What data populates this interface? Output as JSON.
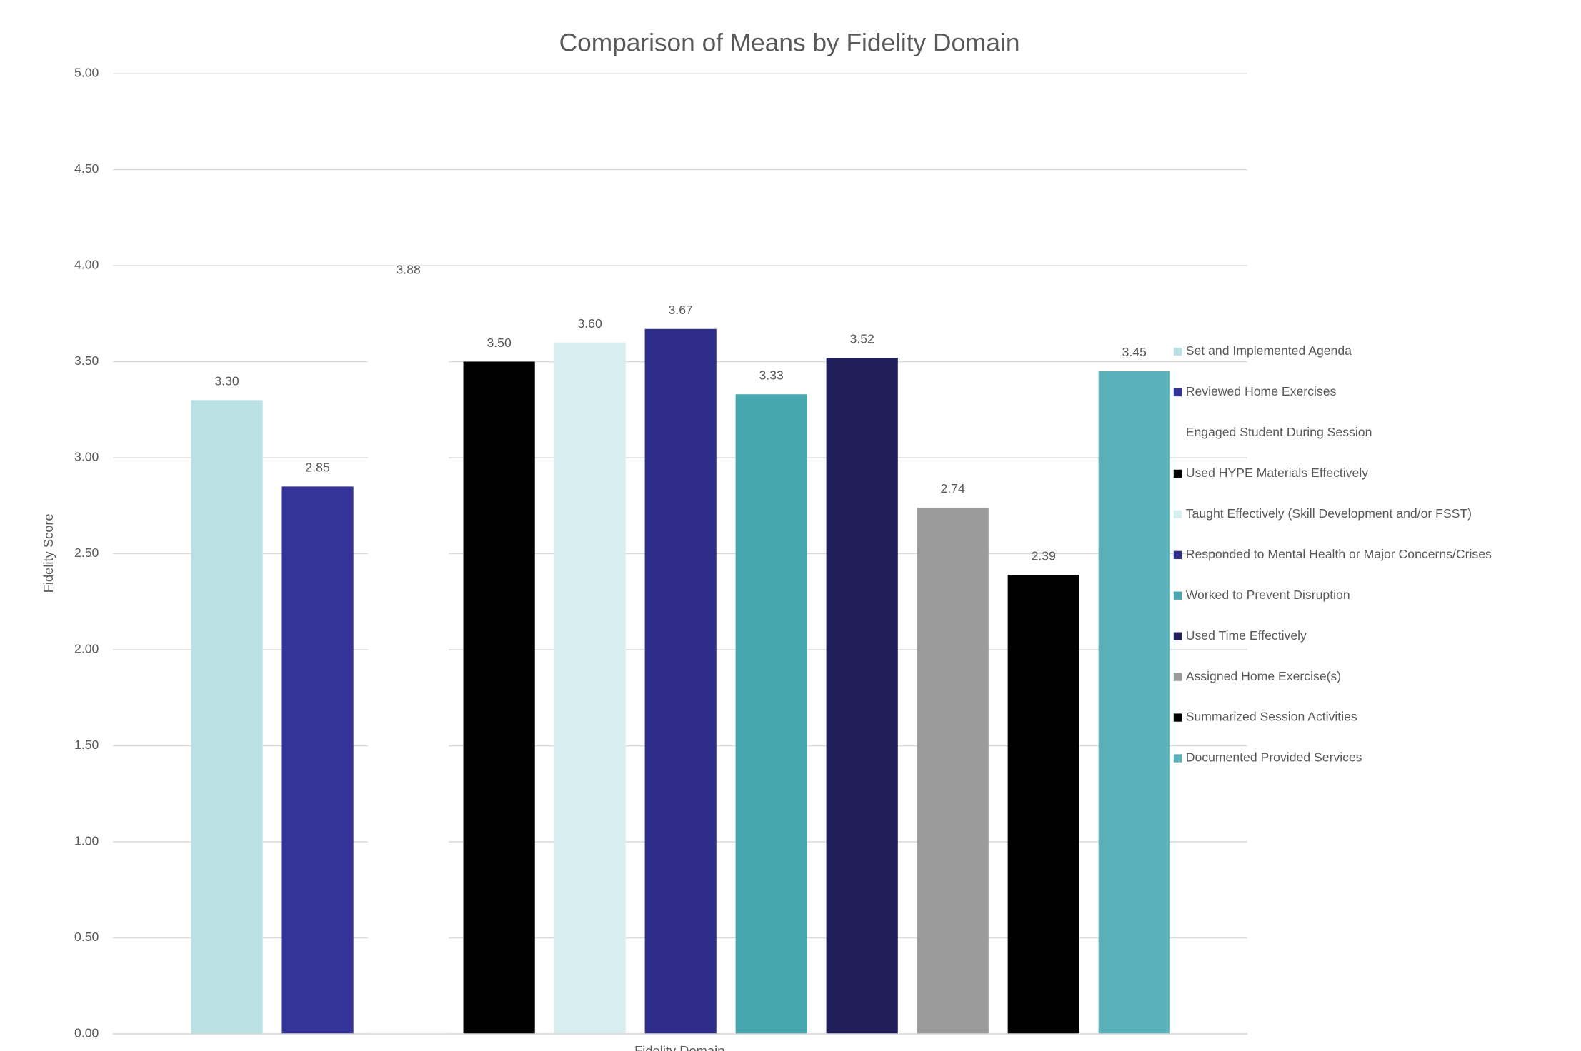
{
  "chart_data": {
    "type": "bar",
    "title": "Comparison of Means by Fidelity Domain",
    "x_label": "Fidelity Domain",
    "y_label": "Fidelity Score",
    "ylim": [
      0,
      5
    ],
    "yticks": [
      {
        "value": 0,
        "label": "0.00"
      },
      {
        "value": 0.5,
        "label": "0.50"
      },
      {
        "value": 1,
        "label": "1.00"
      },
      {
        "value": 1.5,
        "label": "1.50"
      },
      {
        "value": 2,
        "label": "2.00"
      },
      {
        "value": 2.5,
        "label": "2.50"
      },
      {
        "value": 3,
        "label": "3.00"
      },
      {
        "value": 3.5,
        "label": "3.50"
      },
      {
        "value": 4,
        "label": "4.00"
      },
      {
        "value": 4.5,
        "label": "4.50"
      },
      {
        "value": 5,
        "label": "5.00"
      }
    ],
    "grid": true,
    "legend": "right",
    "series": [
      {
        "name": "Set and Implemented Agenda",
        "color": "#b9e0e3",
        "values": [
          3.3
        ],
        "value_labels": [
          "3.30"
        ]
      },
      {
        "name": "Reviewed Home Exercises",
        "color": "#343399",
        "values": [
          2.85
        ],
        "value_labels": [
          "2.85"
        ]
      },
      {
        "name": "Engaged Student During Session",
        "color": "#ffffff",
        "values": [
          3.88
        ],
        "value_labels": [
          "3.88"
        ]
      },
      {
        "name": "Used HYPE Materials Effectively",
        "color": "#000000",
        "values": [
          3.5
        ],
        "value_labels": [
          "3.50"
        ]
      },
      {
        "name": "Taught Effectively (Skill Development and/or FSST)",
        "color": "#d9eef0",
        "values": [
          3.6
        ],
        "value_labels": [
          "3.60"
        ]
      },
      {
        "name": "Responded to Mental Health or Major Concerns/Crises",
        "color": "#2e2e8a",
        "values": [
          3.67
        ],
        "value_labels": [
          "3.67"
        ]
      },
      {
        "name": "Worked to Prevent Disruption",
        "color": "#48a6ae",
        "values": [
          3.33
        ],
        "value_labels": [
          "3.33"
        ]
      },
      {
        "name": "Used Time Effectively",
        "color": "#201f5a",
        "values": [
          3.52
        ],
        "value_labels": [
          "3.52"
        ]
      },
      {
        "name": "Assigned Home Exercise(s)",
        "color": "#9b9b9b",
        "values": [
          2.74
        ],
        "value_labels": [
          "2.74"
        ]
      },
      {
        "name": "Summarized Session Activities",
        "color": "#000000",
        "values": [
          2.39
        ],
        "value_labels": [
          "2.39"
        ]
      },
      {
        "name": "Documented Provided Services",
        "color": "#5bb1b9",
        "values": [
          3.45
        ],
        "value_labels": [
          "3.45"
        ]
      }
    ]
  }
}
